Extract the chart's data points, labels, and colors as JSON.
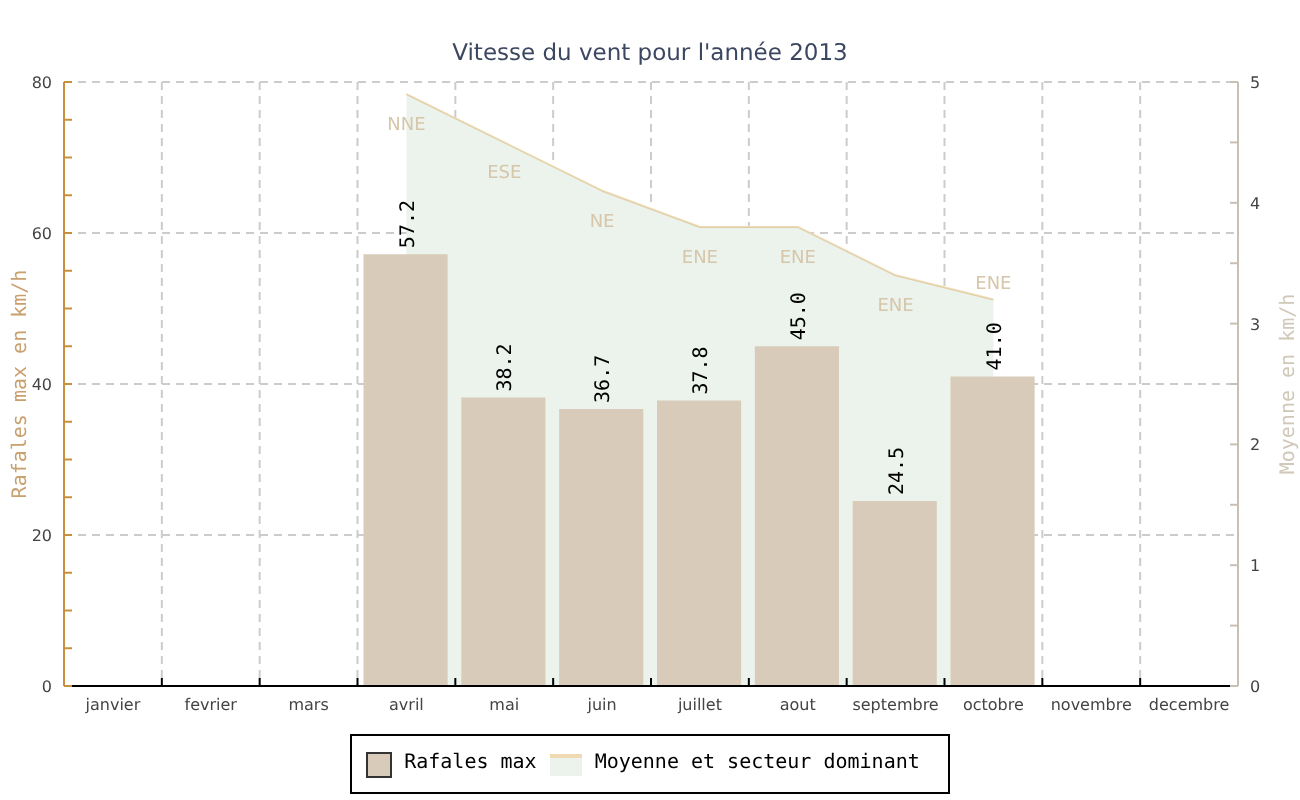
{
  "chart_data": {
    "type": "bar",
    "title": "Vitesse du vent pour l'année 2013",
    "ylabel": "Rafales max en km/h",
    "y2label": "Moyenne en km/h",
    "categories": [
      "janvier",
      "fevrier",
      "mars",
      "avril",
      "mai",
      "juin",
      "juillet",
      "aout",
      "septembre",
      "octobre",
      "novembre",
      "decembre"
    ],
    "series": [
      {
        "name": "Rafales max",
        "color": "#d8cbb9",
        "values": [
          null,
          null,
          null,
          57.2,
          38.2,
          36.7,
          37.8,
          45.0,
          24.5,
          41.0,
          null,
          null
        ],
        "value_labels": [
          null,
          null,
          null,
          "57.2",
          "38.2",
          "36.7",
          "37.8",
          "45.0",
          "24.5",
          "41.0",
          null,
          null
        ]
      },
      {
        "name": "Moyenne et secteur dominant",
        "type": "area",
        "axis": "y2",
        "color": "#ecf3ec",
        "values": [
          null,
          null,
          null,
          4.9,
          4.5,
          4.1,
          3.8,
          3.8,
          3.4,
          3.2,
          null,
          null
        ],
        "value_labels": [
          null,
          null,
          null,
          "NNE",
          "ESE",
          "NE",
          "ENE",
          "ENE",
          "ENE",
          "ENE",
          null,
          null
        ]
      }
    ],
    "ylim": [
      0,
      80
    ],
    "yticks": [
      0,
      {
        "value": 5,
        "label": null
      },
      {
        "value": 10,
        "label": null
      },
      {
        "value": 15,
        "label": null
      },
      20,
      {
        "value": 25,
        "label": null
      },
      {
        "value": 30,
        "label": null
      },
      {
        "value": 35,
        "label": null
      },
      40,
      {
        "value": 45,
        "label": null
      },
      {
        "value": 50,
        "label": null
      },
      {
        "value": 55,
        "label": null
      },
      60,
      {
        "value": 65,
        "label": null
      },
      {
        "value": 70,
        "label": null
      },
      {
        "value": 75,
        "label": null
      },
      80
    ],
    "y2lim": [
      0,
      5
    ],
    "y2ticks": [
      0,
      {
        "value": 0.5,
        "label": null
      },
      1,
      {
        "value": 1.5,
        "label": null
      },
      2,
      {
        "value": 2.5,
        "label": null
      },
      3,
      {
        "value": 3.5,
        "label": null
      },
      4,
      {
        "value": 4.5,
        "label": null
      },
      5
    ],
    "grid": true,
    "legend": "bottom"
  }
}
